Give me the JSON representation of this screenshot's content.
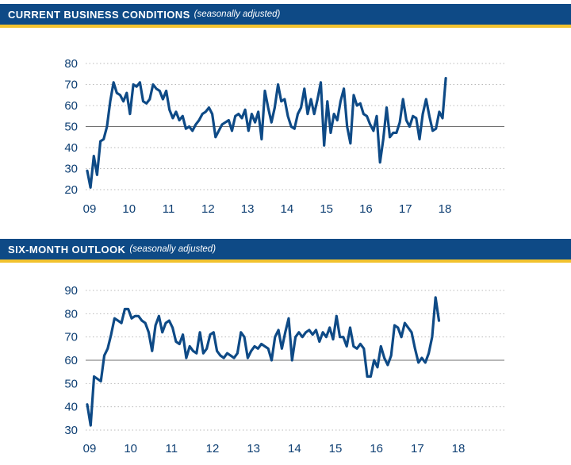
{
  "colors": {
    "header_bg": "#0e4a86",
    "header_accent": "#f2c22e",
    "line": "#0e4a86",
    "tick_text": "#0e3f73",
    "grid": "#b9b9b9",
    "reference_line": "#707070"
  },
  "chart_data": [
    {
      "type": "line",
      "title": "CURRENT BUSINESS CONDITIONS",
      "subtitle": "(seasonally adjusted)",
      "xlabel": "",
      "ylabel": "",
      "x_ticks": [
        "09",
        "10",
        "11",
        "12",
        "13",
        "14",
        "15",
        "16",
        "17",
        "18"
      ],
      "y_ticks": [
        20,
        30,
        40,
        50,
        60,
        70,
        80
      ],
      "ylim": [
        20,
        80
      ],
      "grid": true,
      "reference_line": 50,
      "series": [
        {
          "name": "Current Business Conditions",
          "start": "2009-01",
          "frequency": "monthly",
          "values": [
            29,
            21,
            36,
            27,
            43,
            44,
            50,
            62,
            71,
            66,
            65,
            62,
            66,
            56,
            70,
            69,
            71,
            62,
            61,
            63,
            70,
            68,
            67,
            63,
            67,
            58,
            54,
            57,
            53,
            55,
            49,
            50,
            48,
            51,
            53,
            56,
            57,
            59,
            56,
            45,
            48,
            51,
            52,
            53,
            48,
            55,
            56,
            54,
            58,
            48,
            56,
            52,
            57,
            44,
            67,
            59,
            52,
            59,
            70,
            62,
            63,
            55,
            50,
            49,
            56,
            59,
            68,
            56,
            63,
            56,
            63,
            71,
            41,
            62,
            47,
            56,
            53,
            62,
            68,
            50,
            42,
            65,
            60,
            61,
            56,
            55,
            51,
            48,
            55,
            33,
            44,
            59,
            45,
            47,
            47,
            52,
            63,
            53,
            50,
            55,
            54,
            44,
            56,
            63,
            55,
            48,
            49,
            57,
            54,
            73
          ]
        }
      ]
    },
    {
      "type": "line",
      "title": "SIX-MONTH OUTLOOK",
      "subtitle": "(seasonally adjusted)",
      "xlabel": "",
      "ylabel": "",
      "x_ticks": [
        "09",
        "10",
        "11",
        "12",
        "13",
        "14",
        "15",
        "16",
        "17",
        "18"
      ],
      "y_ticks": [
        30,
        40,
        50,
        60,
        70,
        80,
        90
      ],
      "ylim": [
        30,
        90
      ],
      "grid": true,
      "reference_line": 60,
      "series": [
        {
          "name": "Six-Month Outlook",
          "start": "2009-01",
          "frequency": "monthly",
          "values": [
            41,
            32,
            53,
            52,
            51,
            62,
            65,
            71,
            78,
            77,
            76,
            82,
            82,
            78,
            79,
            79,
            77,
            76,
            72,
            64,
            75,
            79,
            72,
            76,
            77,
            74,
            68,
            67,
            71,
            61,
            66,
            64,
            63,
            72,
            63,
            65,
            71,
            72,
            64,
            62,
            61,
            63,
            62,
            61,
            63,
            72,
            70,
            61,
            64,
            66,
            65,
            67,
            66,
            65,
            60,
            70,
            73,
            65,
            72,
            78,
            60,
            70,
            72,
            70,
            72,
            73,
            71,
            73,
            68,
            72,
            70,
            74,
            69,
            79,
            70,
            70,
            66,
            74,
            66,
            65,
            67,
            65,
            53,
            53,
            60,
            57,
            66,
            61,
            58,
            62,
            75,
            74,
            70,
            76,
            74,
            72,
            65,
            59,
            61,
            59,
            63,
            70,
            87,
            77
          ]
        }
      ]
    }
  ]
}
